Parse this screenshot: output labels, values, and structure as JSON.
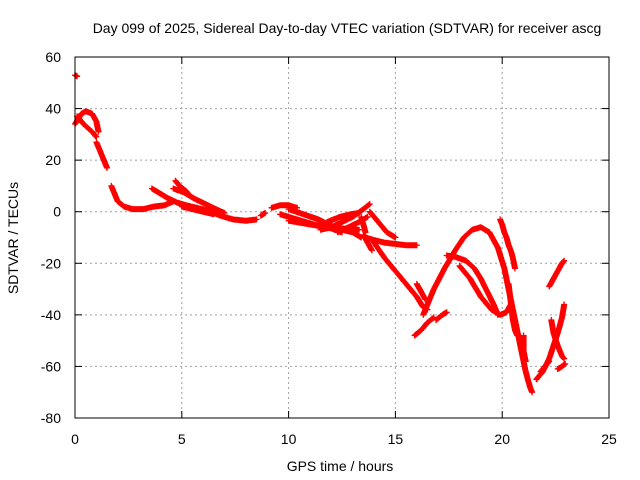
{
  "chart_data": {
    "type": "scatter",
    "title": "Day 099 of 2025, Sidereal Day-to-day VTEC variation (SDTVAR) for receiver ascg",
    "xlabel": "GPS time / hours",
    "ylabel": "SDTVAR / TECUs",
    "xlim": [
      0,
      25
    ],
    "ylim": [
      -80,
      60
    ],
    "xticks": [
      0,
      5,
      10,
      15,
      20,
      25
    ],
    "yticks": [
      -80,
      -60,
      -40,
      -20,
      0,
      20,
      40,
      60
    ],
    "grid": true,
    "marker": "+",
    "series": [
      {
        "name": "SDTVAR",
        "color": "#ff0000",
        "tracks": [
          [
            [
              0.0,
              53
            ],
            [
              0.1,
              52.5
            ]
          ],
          [
            [
              0.0,
              34
            ],
            [
              0.3,
              38
            ],
            [
              0.5,
              39
            ],
            [
              0.8,
              38
            ],
            [
              1.0,
              35
            ],
            [
              1.1,
              31
            ]
          ],
          [
            [
              0.1,
              37
            ],
            [
              0.4,
              34
            ],
            [
              0.8,
              31
            ],
            [
              1.0,
              29
            ]
          ],
          [
            [
              1.0,
              27
            ],
            [
              1.15,
              24
            ],
            [
              1.3,
              21
            ],
            [
              1.5,
              17
            ]
          ],
          [
            [
              1.7,
              10
            ],
            [
              1.85,
              7
            ],
            [
              2.0,
              4
            ],
            [
              2.3,
              2
            ],
            [
              2.7,
              1
            ],
            [
              3.2,
              1
            ],
            [
              3.7,
              2
            ],
            [
              4.2,
              2.5
            ],
            [
              4.6,
              4
            ]
          ],
          [
            [
              3.6,
              9
            ],
            [
              4.0,
              7
            ],
            [
              4.4,
              5
            ],
            [
              4.8,
              3.5
            ],
            [
              5.2,
              2.5
            ],
            [
              5.7,
              1.5
            ],
            [
              6.2,
              0.5
            ],
            [
              6.8,
              -1.5
            ],
            [
              7.4,
              -3
            ],
            [
              8.0,
              -3.5
            ],
            [
              8.5,
              -3
            ]
          ],
          [
            [
              4.6,
              9
            ],
            [
              5.1,
              7.5
            ],
            [
              5.6,
              5
            ],
            [
              6.1,
              3
            ],
            [
              6.6,
              1
            ],
            [
              7.0,
              -0.5
            ]
          ],
          [
            [
              4.7,
              12
            ],
            [
              4.9,
              10
            ],
            [
              5.2,
              8
            ],
            [
              5.4,
              6
            ]
          ],
          [
            [
              5.0,
              2
            ],
            [
              5.5,
              1
            ],
            [
              6.0,
              0
            ],
            [
              6.5,
              -1
            ]
          ],
          [
            [
              8.7,
              -1.5
            ],
            [
              8.9,
              -0.5
            ]
          ],
          [
            [
              9.2,
              1.5
            ],
            [
              9.6,
              2.5
            ],
            [
              10.0,
              2.5
            ],
            [
              10.4,
              1.5
            ]
          ],
          [
            [
              9.6,
              -1
            ],
            [
              10.0,
              -2
            ],
            [
              10.6,
              -3.5
            ],
            [
              11.2,
              -5
            ],
            [
              11.8,
              -6
            ],
            [
              12.5,
              -6.5
            ],
            [
              13.3,
              -7
            ]
          ],
          [
            [
              10.0,
              -3.5
            ],
            [
              10.7,
              -4.5
            ],
            [
              11.4,
              -5.5
            ],
            [
              12.0,
              -6.5
            ],
            [
              12.5,
              -8
            ]
          ],
          [
            [
              10.0,
              1
            ],
            [
              10.7,
              -1
            ],
            [
              11.4,
              -3
            ],
            [
              12.0,
              -5.5
            ],
            [
              12.5,
              -7
            ],
            [
              13.0,
              -8
            ],
            [
              13.4,
              -10
            ]
          ],
          [
            [
              11.5,
              -7
            ],
            [
              12.0,
              -6
            ],
            [
              12.5,
              -4
            ],
            [
              13.0,
              -2
            ],
            [
              13.5,
              1
            ],
            [
              13.8,
              3
            ]
          ],
          [
            [
              12.3,
              -8
            ],
            [
              12.8,
              -6
            ],
            [
              13.3,
              -4
            ],
            [
              13.7,
              -2
            ]
          ],
          [
            [
              11.8,
              -4
            ],
            [
              12.4,
              -2
            ],
            [
              12.9,
              -1
            ],
            [
              13.3,
              -0.5
            ]
          ],
          [
            [
              13.4,
              -2
            ],
            [
              13.5,
              -5
            ],
            [
              13.6,
              -8
            ]
          ],
          [
            [
              13.5,
              -9
            ],
            [
              13.7,
              -12
            ],
            [
              13.9,
              -15
            ]
          ],
          [
            [
              13.6,
              -10
            ],
            [
              14.0,
              -11
            ],
            [
              14.5,
              -12
            ],
            [
              15.0,
              -12.5
            ],
            [
              15.5,
              -13
            ],
            [
              16.0,
              -13
            ]
          ],
          [
            [
              13.8,
              0
            ],
            [
              14.0,
              -2
            ],
            [
              14.3,
              -5
            ],
            [
              14.6,
              -8
            ],
            [
              15.0,
              -10
            ]
          ],
          [
            [
              14.0,
              -12
            ],
            [
              14.5,
              -18
            ],
            [
              15.0,
              -23
            ],
            [
              15.5,
              -28
            ],
            [
              16.0,
              -33
            ],
            [
              16.3,
              -37
            ],
            [
              16.5,
              -38
            ]
          ],
          [
            [
              16.0,
              -28
            ],
            [
              16.2,
              -31
            ],
            [
              16.4,
              -34
            ]
          ],
          [
            [
              15.9,
              -48
            ],
            [
              16.2,
              -46
            ],
            [
              16.5,
              -43
            ],
            [
              16.8,
              -41
            ]
          ],
          [
            [
              16.9,
              -42
            ],
            [
              17.2,
              -40
            ],
            [
              17.4,
              -39
            ]
          ],
          [
            [
              16.3,
              -40
            ],
            [
              16.8,
              -30
            ],
            [
              17.3,
              -22
            ],
            [
              17.8,
              -15
            ],
            [
              18.2,
              -10
            ],
            [
              18.6,
              -7
            ],
            [
              19.0,
              -6
            ],
            [
              19.4,
              -8
            ],
            [
              19.8,
              -14
            ],
            [
              20.1,
              -22
            ],
            [
              20.3,
              -30
            ],
            [
              20.5,
              -38
            ],
            [
              20.7,
              -46
            ],
            [
              20.9,
              -54
            ],
            [
              21.1,
              -62
            ],
            [
              21.3,
              -68
            ],
            [
              21.4,
              -70
            ]
          ],
          [
            [
              17.4,
              -17
            ],
            [
              17.8,
              -17.5
            ],
            [
              18.3,
              -19
            ],
            [
              18.7,
              -22
            ],
            [
              19.0,
              -26
            ],
            [
              19.3,
              -31
            ],
            [
              19.6,
              -36
            ],
            [
              19.8,
              -40
            ]
          ],
          [
            [
              18.0,
              -21
            ],
            [
              18.5,
              -26
            ],
            [
              19.0,
              -33
            ],
            [
              19.5,
              -38
            ],
            [
              19.9,
              -40
            ],
            [
              20.2,
              -39
            ],
            [
              20.4,
              -36
            ]
          ],
          [
            [
              19.9,
              -3
            ],
            [
              20.0,
              -5
            ],
            [
              20.1,
              -8
            ],
            [
              20.2,
              -10
            ],
            [
              20.3,
              -13
            ],
            [
              20.4,
              -15
            ],
            [
              20.5,
              -18
            ],
            [
              20.6,
              -22
            ]
          ],
          [
            [
              20.3,
              -28
            ],
            [
              20.4,
              -35
            ],
            [
              20.5,
              -42
            ],
            [
              20.6,
              -46
            ],
            [
              20.7,
              -48
            ]
          ],
          [
            [
              21.0,
              -48
            ],
            [
              21.0,
              -54
            ],
            [
              21.1,
              -58
            ]
          ],
          [
            [
              21.6,
              -65
            ],
            [
              21.9,
              -62
            ],
            [
              22.2,
              -57
            ],
            [
              22.4,
              -52
            ],
            [
              22.6,
              -47
            ],
            [
              22.8,
              -41
            ],
            [
              22.9,
              -36
            ]
          ],
          [
            [
              21.8,
              -62
            ],
            [
              22.0,
              -60
            ],
            [
              22.2,
              -58
            ]
          ],
          [
            [
              22.3,
              -42
            ],
            [
              22.4,
              -47
            ],
            [
              22.6,
              -52
            ],
            [
              22.8,
              -56
            ],
            [
              22.9,
              -57
            ]
          ],
          [
            [
              22.6,
              -61
            ],
            [
              22.8,
              -60
            ],
            [
              22.95,
              -59
            ]
          ],
          [
            [
              22.2,
              -29
            ],
            [
              22.4,
              -26
            ],
            [
              22.6,
              -23
            ],
            [
              22.8,
              -20
            ],
            [
              22.9,
              -19
            ]
          ]
        ]
      }
    ]
  }
}
